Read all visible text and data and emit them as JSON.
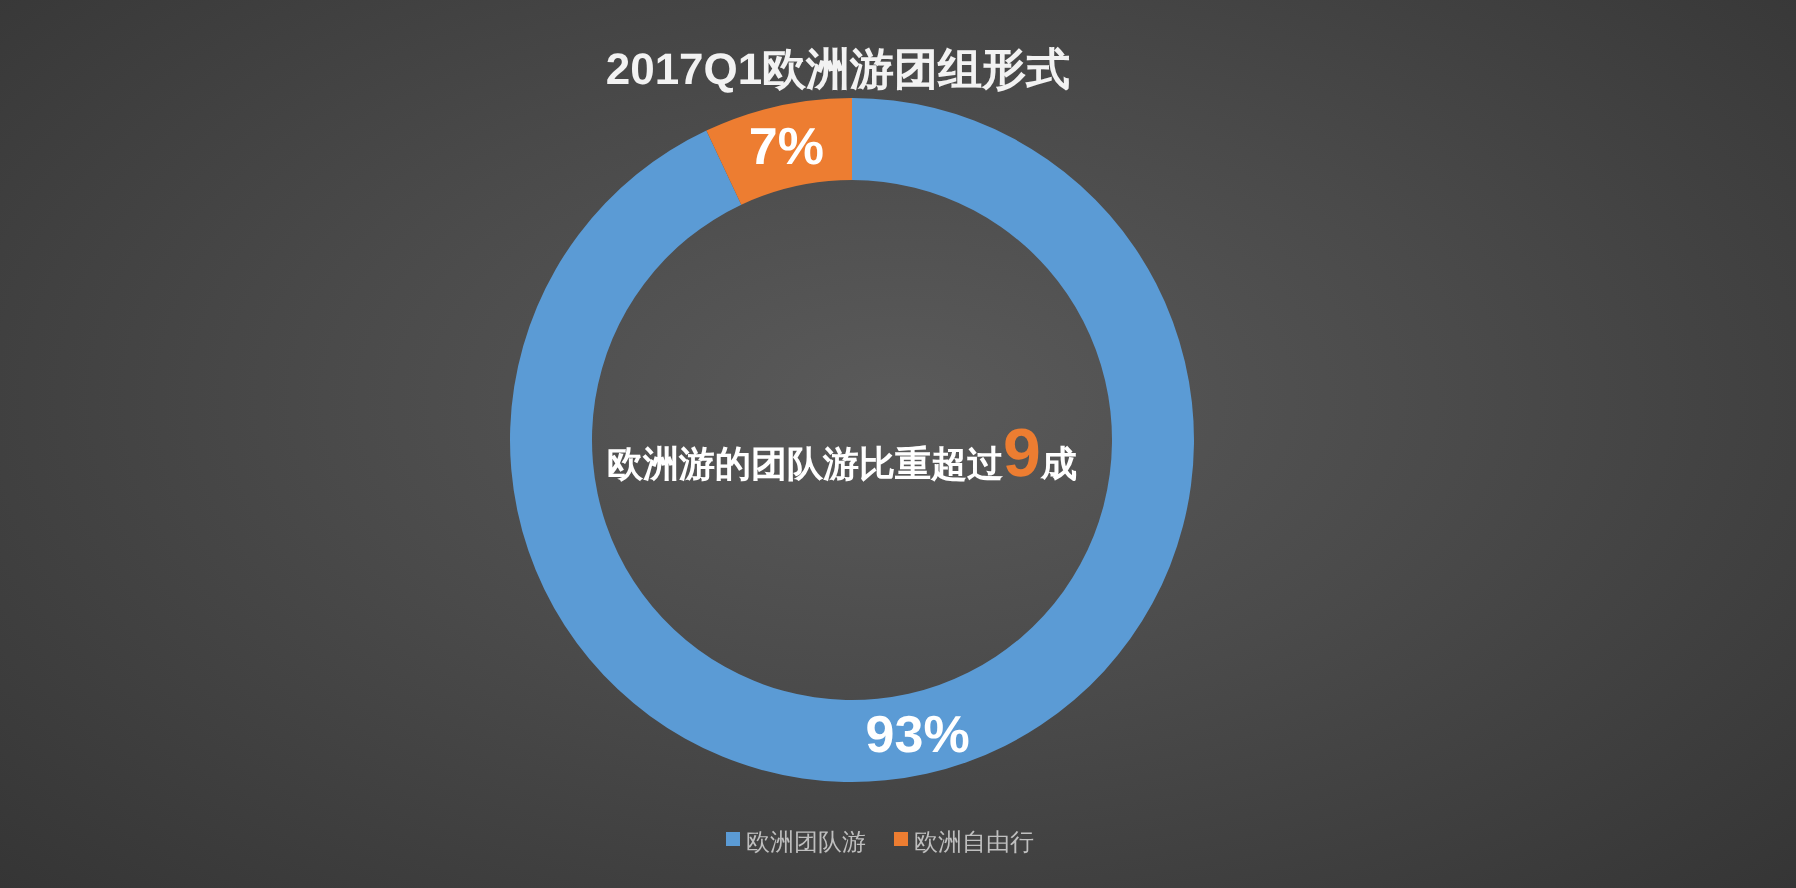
{
  "chart_data": {
    "type": "donut",
    "title": "2017Q1欧洲游团组形式",
    "categories": [
      "欧洲团队游",
      "欧洲自由行"
    ],
    "values": [
      93,
      7
    ],
    "colors": [
      "#5b9bd5",
      "#ed7d31"
    ],
    "value_labels": [
      "93%",
      "7%"
    ],
    "annotations": [
      "欧洲游的团队游比重超过**9**成"
    ],
    "legend": "bottom"
  }
}
